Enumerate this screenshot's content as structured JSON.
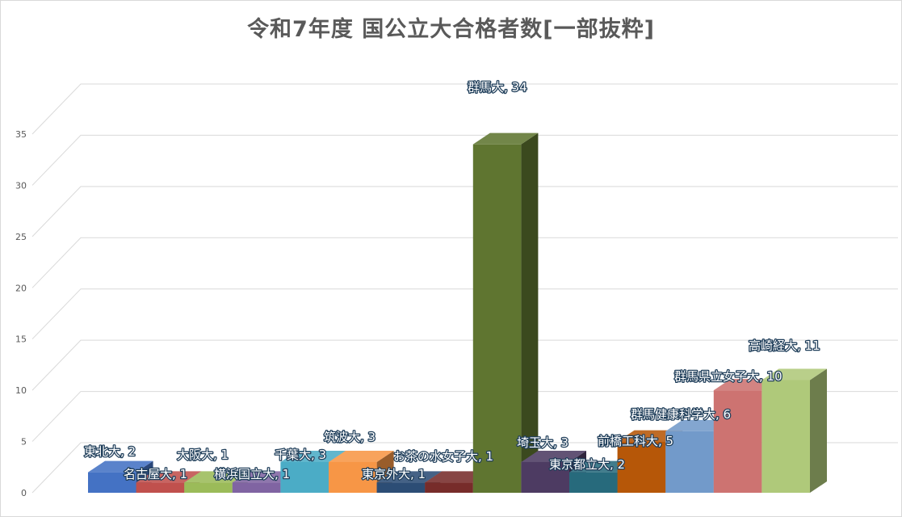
{
  "chart_data": {
    "type": "bar",
    "title": "令和7年度 国公立大合格者数[一部抜粋]",
    "xlabel": "",
    "ylabel": "",
    "ylim": [
      0,
      35
    ],
    "yticks": [
      0,
      5,
      10,
      15,
      20,
      25,
      30,
      35
    ],
    "grid": true,
    "legend": "none",
    "categories": [
      "東北大",
      "名古屋大",
      "大阪大",
      "横浜国立大",
      "千葉大",
      "筑波大",
      "東京外大",
      "お茶の水女子大",
      "群馬大",
      "埼玉大",
      "東京都立大",
      "前橋工科大",
      "群馬健康科学大",
      "群馬県立女子大",
      "高崎経大"
    ],
    "values": [
      2,
      1,
      1,
      1,
      3,
      3,
      1,
      1,
      34,
      3,
      2,
      5,
      6,
      10,
      11
    ],
    "data_labels": [
      "東北大, 2",
      "名古屋大, 1",
      "大阪大, 1",
      "横浜国立大, 1",
      "千葉大, 3",
      "筑波大, 3",
      "東京外大, 1",
      "お茶の水女子大, 1",
      "群馬大, 34",
      "埼玉大, 3",
      "東京都立大, 2",
      "前橋工科大, 5",
      "群馬健康科学大, 6",
      "群馬県立女子大, 10",
      "高崎経大, 11"
    ],
    "colors": [
      "#4472c4",
      "#c0504d",
      "#9bbb59",
      "#8064a2",
      "#4bacc6",
      "#f79646",
      "#2c4d75",
      "#772c2a",
      "#5f7530",
      "#4d3b62",
      "#276a7c",
      "#b65708",
      "#729aca",
      "#cd7371",
      "#afc97a"
    ]
  }
}
